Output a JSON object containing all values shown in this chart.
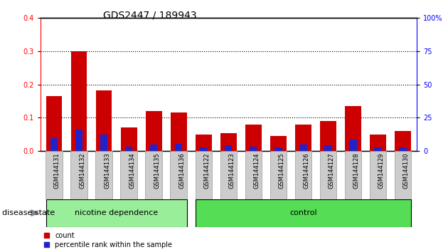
{
  "title": "GDS2447 / 189943",
  "samples": [
    "GSM144131",
    "GSM144132",
    "GSM144133",
    "GSM144134",
    "GSM144135",
    "GSM144136",
    "GSM144122",
    "GSM144123",
    "GSM144124",
    "GSM144125",
    "GSM144126",
    "GSM144127",
    "GSM144128",
    "GSM144129",
    "GSM144130"
  ],
  "count_values": [
    0.165,
    0.3,
    0.182,
    0.072,
    0.12,
    0.115,
    0.05,
    0.055,
    0.08,
    0.045,
    0.08,
    0.09,
    0.135,
    0.05,
    0.06
  ],
  "percentile_values": [
    10,
    16,
    12.5,
    3.5,
    5,
    5.5,
    3,
    4.5,
    3.5,
    3,
    5,
    4.5,
    9,
    3,
    3
  ],
  "count_color": "#cc0000",
  "percentile_color": "#2222cc",
  "ylim_left": [
    0,
    0.4
  ],
  "ylim_right": [
    0,
    100
  ],
  "yticks_left": [
    0,
    0.1,
    0.2,
    0.3,
    0.4
  ],
  "yticks_right": [
    0,
    25,
    50,
    75,
    100
  ],
  "bar_width": 0.65,
  "group1_label": "nicotine dependence",
  "group2_label": "control",
  "group1_indices": [
    0,
    1,
    2,
    3,
    4,
    5
  ],
  "group2_indices": [
    6,
    7,
    8,
    9,
    10,
    11,
    12,
    13,
    14
  ],
  "group1_color": "#99ee99",
  "group2_color": "#55dd55",
  "disease_state_label": "disease state",
  "legend_count": "count",
  "legend_percentile": "percentile rank within the sample",
  "title_fontsize": 10,
  "tick_fontsize": 7,
  "label_fontsize": 8,
  "sample_fontsize": 6
}
